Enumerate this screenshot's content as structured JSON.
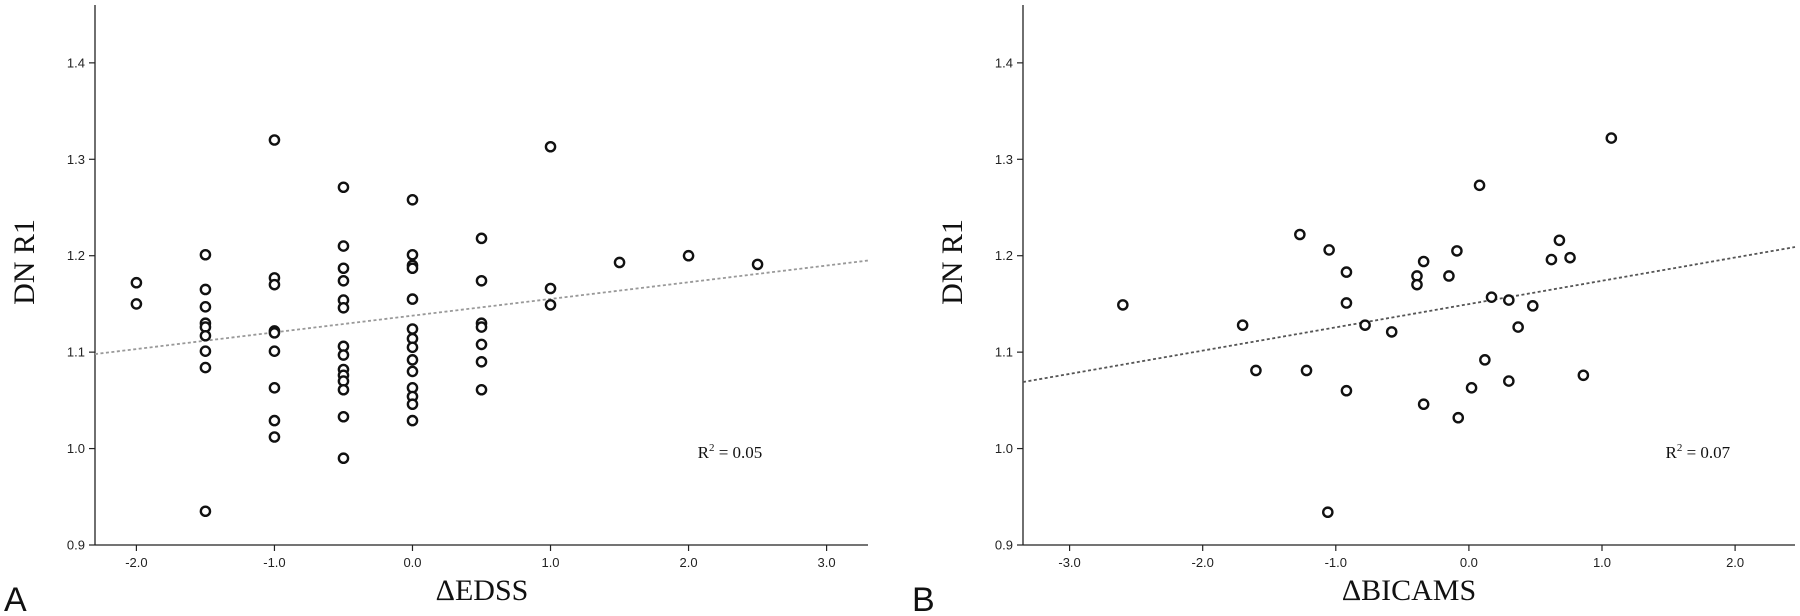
{
  "chart_data": [
    {
      "type": "scatter",
      "panel_label": "A",
      "xlabel": "ΔEDSS",
      "ylabel": "DN R1",
      "xlim": [
        -2.3,
        3.3
      ],
      "ylim": [
        0.9,
        1.46
      ],
      "xticks": [
        -2.0,
        -1.0,
        0.0,
        1.0,
        2.0,
        3.0
      ],
      "xtick_labels": [
        "-2.0",
        "-1.0",
        "0.0",
        "1.0",
        "2.0",
        "3.0"
      ],
      "yticks": [
        0.9,
        1.0,
        1.1,
        1.2,
        1.3,
        1.4
      ],
      "ytick_labels": [
        "0.9",
        "1.0",
        "1.1",
        "1.2",
        "1.3",
        "1.4"
      ],
      "annotation": {
        "prefix": "R",
        "sup": "2",
        "suffix": " = 0.05",
        "x": 2.3,
        "y": 0.99
      },
      "fit_line": {
        "x": [
          -2.3,
          3.3
        ],
        "y": [
          1.098,
          1.195
        ],
        "color": "#999999"
      },
      "points": [
        [
          -2.0,
          1.172
        ],
        [
          -2.0,
          1.15
        ],
        [
          -1.5,
          1.201
        ],
        [
          -1.5,
          1.165
        ],
        [
          -1.5,
          1.147
        ],
        [
          -1.5,
          1.13
        ],
        [
          -1.5,
          1.126
        ],
        [
          -1.5,
          1.117
        ],
        [
          -1.5,
          1.101
        ],
        [
          -1.5,
          1.084
        ],
        [
          -1.5,
          0.935
        ],
        [
          -1.0,
          1.32
        ],
        [
          -1.0,
          1.177
        ],
        [
          -1.0,
          1.17
        ],
        [
          -1.0,
          1.122
        ],
        [
          -1.0,
          1.12
        ],
        [
          -1.0,
          1.101
        ],
        [
          -1.0,
          1.063
        ],
        [
          -1.0,
          1.029
        ],
        [
          -1.0,
          1.012
        ],
        [
          -0.5,
          1.271
        ],
        [
          -0.5,
          1.21
        ],
        [
          -0.5,
          1.187
        ],
        [
          -0.5,
          1.174
        ],
        [
          -0.5,
          1.154
        ],
        [
          -0.5,
          1.146
        ],
        [
          -0.5,
          1.106
        ],
        [
          -0.5,
          1.097
        ],
        [
          -0.5,
          1.082
        ],
        [
          -0.5,
          1.076
        ],
        [
          -0.5,
          1.07
        ],
        [
          -0.5,
          1.061
        ],
        [
          -0.5,
          1.033
        ],
        [
          -0.5,
          0.99
        ],
        [
          0.0,
          1.258
        ],
        [
          0.0,
          1.201
        ],
        [
          0.0,
          1.19
        ],
        [
          0.0,
          1.187
        ],
        [
          0.0,
          1.155
        ],
        [
          0.0,
          1.124
        ],
        [
          0.0,
          1.114
        ],
        [
          0.0,
          1.105
        ],
        [
          0.0,
          1.092
        ],
        [
          0.0,
          1.08
        ],
        [
          0.0,
          1.063
        ],
        [
          0.0,
          1.054
        ],
        [
          0.0,
          1.046
        ],
        [
          0.0,
          1.029
        ],
        [
          0.5,
          1.218
        ],
        [
          0.5,
          1.174
        ],
        [
          0.5,
          1.13
        ],
        [
          0.5,
          1.126
        ],
        [
          0.5,
          1.108
        ],
        [
          0.5,
          1.09
        ],
        [
          0.5,
          1.061
        ],
        [
          1.0,
          1.313
        ],
        [
          1.0,
          1.166
        ],
        [
          1.0,
          1.149
        ],
        [
          1.5,
          1.193
        ],
        [
          2.0,
          1.2
        ],
        [
          2.5,
          1.191
        ]
      ]
    },
    {
      "type": "scatter",
      "panel_label": "B",
      "xlabel": "ΔBICAMS",
      "ylabel": "DN R1",
      "xlim": [
        -3.35,
        2.45
      ],
      "ylim": [
        0.9,
        1.46
      ],
      "xticks": [
        -3.0,
        -2.0,
        -1.0,
        0.0,
        1.0,
        2.0
      ],
      "xtick_labels": [
        "-3.0",
        "-2.0",
        "-1.0",
        "0.0",
        "1.0",
        "2.0"
      ],
      "yticks": [
        0.9,
        1.0,
        1.1,
        1.2,
        1.3,
        1.4
      ],
      "ytick_labels": [
        "0.9",
        "1.0",
        "1.1",
        "1.2",
        "1.3",
        "1.4"
      ],
      "annotation": {
        "prefix": "R",
        "sup": "2",
        "suffix": " = 0.07",
        "x": 1.72,
        "y": 0.99
      },
      "fit_line": {
        "x": [
          -3.35,
          2.45
        ],
        "y": [
          1.069,
          1.209
        ],
        "color": "#555555"
      },
      "points": [
        [
          -2.6,
          1.149
        ],
        [
          -1.7,
          1.128
        ],
        [
          -1.6,
          1.081
        ],
        [
          -1.27,
          1.222
        ],
        [
          -1.22,
          1.081
        ],
        [
          -1.05,
          1.206
        ],
        [
          -1.06,
          0.934
        ],
        [
          -0.92,
          1.183
        ],
        [
          -0.92,
          1.151
        ],
        [
          -0.92,
          1.06
        ],
        [
          -0.78,
          1.128
        ],
        [
          -0.58,
          1.121
        ],
        [
          -0.39,
          1.179
        ],
        [
          -0.39,
          1.17
        ],
        [
          -0.34,
          1.194
        ],
        [
          -0.34,
          1.046
        ],
        [
          -0.15,
          1.179
        ],
        [
          -0.09,
          1.205
        ],
        [
          -0.08,
          1.032
        ],
        [
          0.02,
          1.063
        ],
        [
          0.08,
          1.273
        ],
        [
          0.12,
          1.092
        ],
        [
          0.17,
          1.157
        ],
        [
          0.3,
          1.154
        ],
        [
          0.3,
          1.07
        ],
        [
          0.37,
          1.126
        ],
        [
          0.48,
          1.148
        ],
        [
          0.62,
          1.196
        ],
        [
          0.68,
          1.216
        ],
        [
          0.76,
          1.198
        ],
        [
          0.86,
          1.076
        ],
        [
          1.07,
          1.322
        ]
      ]
    }
  ]
}
